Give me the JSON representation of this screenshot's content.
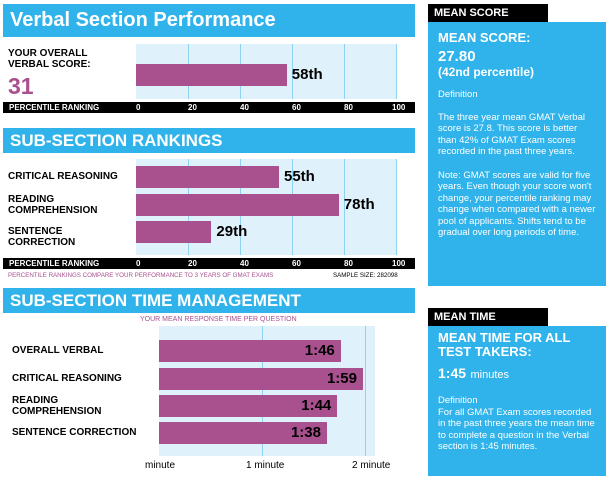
{
  "verbal": {
    "title": "Verbal Section Performance",
    "overall_label": "YOUR OVERALL VERBAL SCORE:",
    "score": "31",
    "percentile_value": 58,
    "percentile_label": "58th",
    "axis_label": "PERCENTILE RANKING"
  },
  "rankings": {
    "title": "SUB-SECTION RANKINGS",
    "axis_label": "PERCENTILE RANKING",
    "note": "PERCENTILE RANKINGS COMPARE YOUR PERFORMANCE TO 3 YEARS OF GMAT EXAMS",
    "sample_size": "SAMPLE SIZE: 282098"
  },
  "time": {
    "title": "SUB-SECTION TIME MANAGEMENT",
    "subtitle": "YOUR MEAN RESPONSE TIME PER QUESTION"
  },
  "mean_score": {
    "header": "MEAN SCORE",
    "line1": "MEAN SCORE:",
    "value": "27.80",
    "percentile": "(42nd percentile)",
    "definition_label": "Definition",
    "definition": "The three year mean GMAT Verbal  score is 27.8. This score is better than 42% of GMAT Exam scores recorded in the past three years.",
    "note": "Note:  GMAT scores are valid for five years. Even though your score won't change, your percentile ranking may change when compared with a newer pool of applicants.  Shifts tend to be gradual over long periods of time."
  },
  "mean_time": {
    "header": "MEAN TIME",
    "line1": "MEAN TIME FOR ALL TEST TAKERS:",
    "value": "1:45",
    "unit": "minutes",
    "definition_label": "Definition",
    "definition": "For all GMAT Exam scores recorded in the past three years the mean time to complete a question in the Verbal section is 1:45 minutes."
  },
  "colors": {
    "accent": "#2fb3ea",
    "bar": "#a9508f",
    "grid_bg": "#dff1fb",
    "score": "#a9508f"
  },
  "chart_data": [
    {
      "type": "bar",
      "title": "Verbal Section Performance",
      "categories": [
        "YOUR OVERALL VERBAL SCORE:"
      ],
      "values": [
        58
      ],
      "value_labels": [
        "58th"
      ],
      "xlabel": "PERCENTILE RANKING",
      "xlim": [
        0,
        100
      ],
      "ticks": [
        "0",
        "20",
        "40",
        "60",
        "80",
        "100"
      ]
    },
    {
      "type": "bar",
      "title": "SUB-SECTION RANKINGS",
      "categories": [
        "CRITICAL REASONING",
        "READING COMPREHENSION",
        "SENTENCE CORRECTION"
      ],
      "values": [
        55,
        78,
        29
      ],
      "value_labels": [
        "55th",
        "78th",
        "29th"
      ],
      "xlabel": "PERCENTILE RANKING",
      "xlim": [
        0,
        100
      ],
      "ticks": [
        "0",
        "20",
        "40",
        "60",
        "80",
        "100"
      ]
    },
    {
      "type": "bar",
      "title": "SUB-SECTION TIME MANAGEMENT",
      "subtitle": "YOUR MEAN RESPONSE TIME PER QUESTION",
      "categories": [
        "OVERALL VERBAL",
        "CRITICAL REASONING",
        "READING COMPREHENSION",
        "SENTENCE CORRECTION"
      ],
      "values": [
        1.767,
        1.983,
        1.733,
        1.633
      ],
      "value_labels": [
        "1:46",
        "1:59",
        "1:44",
        "1:38"
      ],
      "xlim": [
        0,
        2.1
      ],
      "ticks": [
        "minute",
        "1 minute",
        "2 minute"
      ],
      "tick_values": [
        0,
        1,
        2
      ]
    }
  ]
}
